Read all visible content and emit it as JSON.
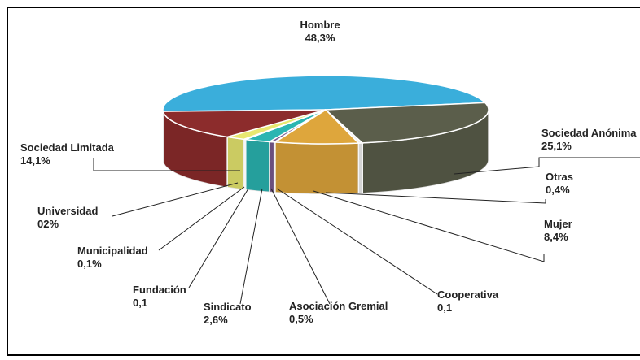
{
  "chart_data": {
    "type": "pie",
    "categories": [
      "Hombre",
      "Sociedad Anónima",
      "Otras",
      "Mujer",
      "Cooperativa",
      "Asociación Gremial",
      "Sindicato",
      "Fundación",
      "Municipalidad",
      "Universidad",
      "Sociedad Limitada"
    ],
    "values": [
      48.3,
      25.1,
      0.4,
      8.4,
      0.1,
      0.5,
      2.6,
      0.1,
      0.1,
      2,
      14.1
    ],
    "value_labels": [
      "48,3%",
      "25,1%",
      "0,4%",
      "8,4%",
      "0,1",
      "0,5%",
      "2,6%",
      "0,1",
      "0,1%",
      "02%",
      "14,1%"
    ],
    "colors": [
      "#3aaedb",
      "#5b5e4b",
      "#f2f2f2",
      "#dea63c",
      "#d9d9d9",
      "#7a5a90",
      "#2bb5b2",
      "#3a3a5a",
      "#8a70a8",
      "#e8e870",
      "#8c2c2c"
    ]
  }
}
